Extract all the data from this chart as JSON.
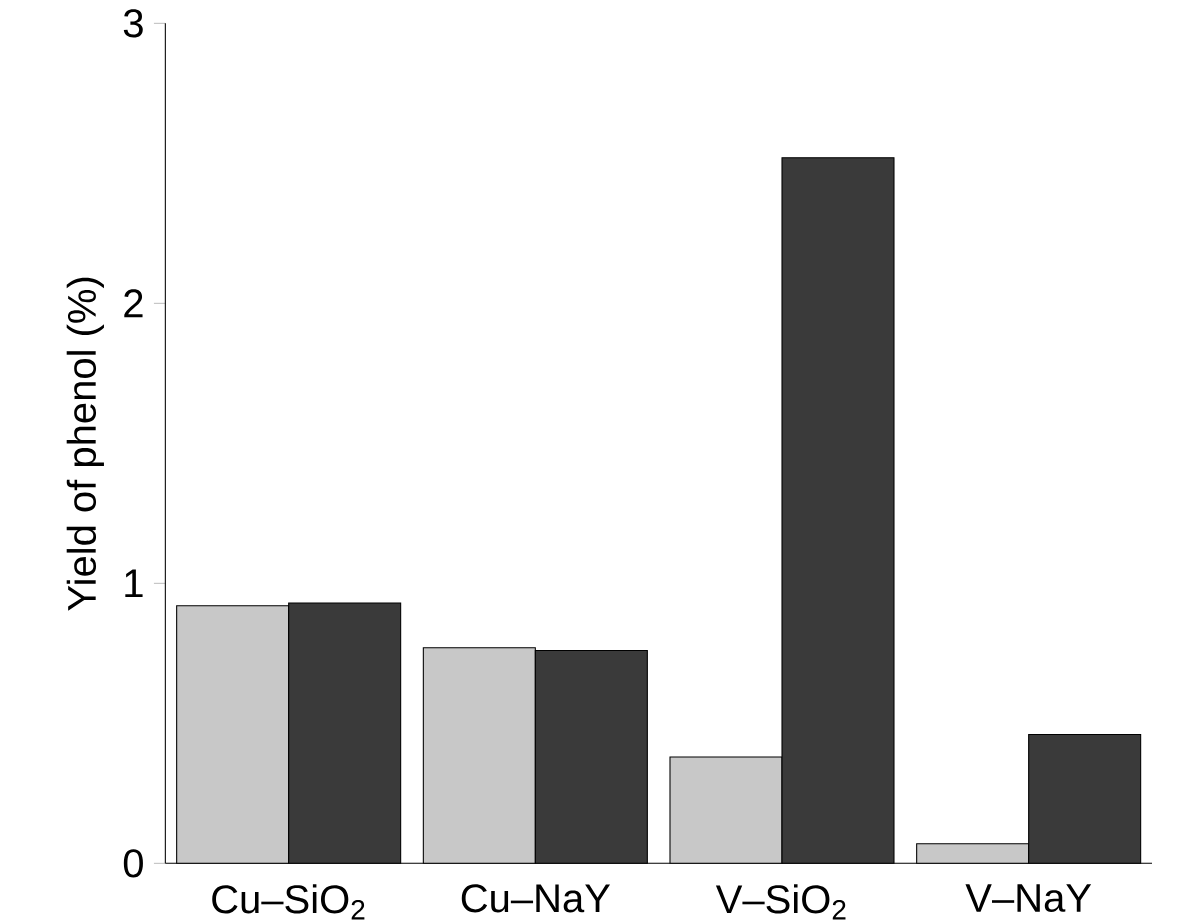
{
  "chart_data": {
    "type": "bar",
    "ylabel": "Yield of phenol (%)",
    "categories": [
      "Cu–SiO$_{2}$",
      "Cu–NaY",
      "V–SiO$_{2}$",
      "V–NaY"
    ],
    "series": [
      {
        "color": "#c8c8c8",
        "values": [
          0.92,
          0.77,
          0.38,
          0.07
        ]
      },
      {
        "color": "#3a3a3a",
        "values": [
          0.93,
          0.76,
          2.52,
          0.46
        ]
      }
    ],
    "ylim": [
      0,
      3
    ],
    "yticks": [
      0,
      1,
      2,
      3
    ]
  }
}
